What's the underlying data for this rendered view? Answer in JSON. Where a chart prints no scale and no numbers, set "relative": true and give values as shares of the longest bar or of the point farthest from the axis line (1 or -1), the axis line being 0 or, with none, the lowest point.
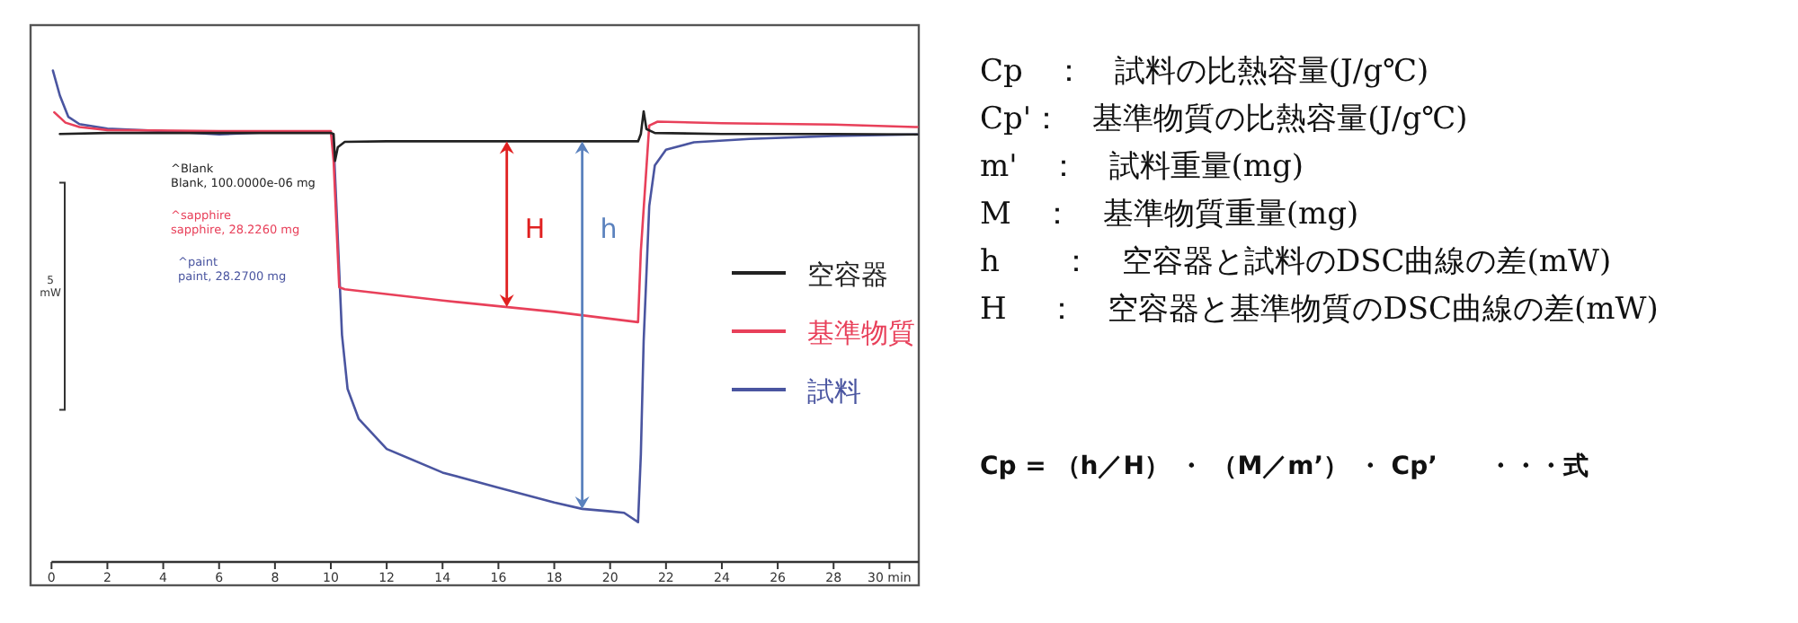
{
  "chart_data": {
    "type": "line",
    "relative": true,
    "x": [
      0.3,
      2,
      6,
      10,
      10.1,
      10.15,
      10.25,
      10.5,
      12,
      16,
      20,
      21,
      21.1,
      21.2,
      21.3,
      21.6,
      24,
      28,
      31
    ],
    "xlim": [
      -0.75,
      31.05
    ],
    "xticks": [
      0,
      2,
      4,
      6,
      8,
      10,
      12,
      14,
      16,
      18,
      20,
      22,
      24,
      26,
      28,
      {
        "value": 30,
        "label": "30 min"
      }
    ],
    "series": [
      {
        "name": "空容器",
        "color": "#222222",
        "values": [
          0.871,
          0.873,
          0.873,
          0.873,
          0.871,
          0.816,
          0.844,
          0.855,
          0.856,
          0.856,
          0.856,
          0.856,
          0.871,
          0.917,
          0.881,
          0.873,
          0.871,
          0.871,
          0.87
        ]
      },
      {
        "name": "基準物質",
        "color": "#e8405a",
        "x": [
          0.1,
          0.5,
          1,
          2,
          6,
          10,
          10.1,
          10.3,
          10.5,
          14,
          18,
          21,
          21.1,
          21.4,
          21.7,
          24,
          28,
          31
        ],
        "values": [
          0.915,
          0.894,
          0.885,
          0.879,
          0.877,
          0.877,
          0.816,
          0.559,
          0.555,
          0.532,
          0.509,
          0.488,
          0.633,
          0.888,
          0.896,
          0.893,
          0.89,
          0.885
        ]
      },
      {
        "name": "試料",
        "color": "#4a55a0",
        "x": [
          0.05,
          0.3,
          0.6,
          1,
          2,
          4,
          6,
          8,
          10,
          10.1,
          10.2,
          10.4,
          10.6,
          11,
          12,
          14,
          16,
          18,
          19,
          20,
          20.5,
          21,
          21.1,
          21.2,
          21.4,
          21.6,
          22,
          23,
          25,
          28,
          31
        ],
        "values": [
          1,
          0.949,
          0.906,
          0.891,
          0.882,
          0.877,
          0.87,
          0.875,
          0.875,
          0.853,
          0.724,
          0.462,
          0.352,
          0.291,
          0.23,
          0.182,
          0.151,
          0.121,
          0.108,
          0.103,
          0.1,
          0.081,
          0.219,
          0.449,
          0.724,
          0.807,
          0.839,
          0.854,
          0.861,
          0.867,
          0.87
        ]
      }
    ],
    "legend": "right",
    "grid": false,
    "marker": "none",
    "line_style": "solid",
    "annotations": [
      "^Blank\nBlank, 100.0000e-06 mg",
      "^sapphire\nsapphire, 28.2260 mg",
      "^paint\npaint, 28.2700 mg",
      "5\nmW",
      {
        "text": "H",
        "x": 16.3,
        "y": 0.856
      },
      {
        "text": "h",
        "x": 19.0,
        "y": 0.856
      },
      "Cp　：　試料の比熱容量(J/g℃)",
      "Cp'：　基準物質の比熱容量(J/g℃)",
      "m'　：　試料重量(mg)",
      "M　：　基準物質重量(mg)",
      "h　　：　空容器と試料のDSC曲線の差(mW)",
      "H　 ：　空容器と基準物質のDSC曲線の差(mW)",
      "Cp = （h／H） ・ （M／m’） ・ Cp’　　・・・式"
    ]
  }
}
